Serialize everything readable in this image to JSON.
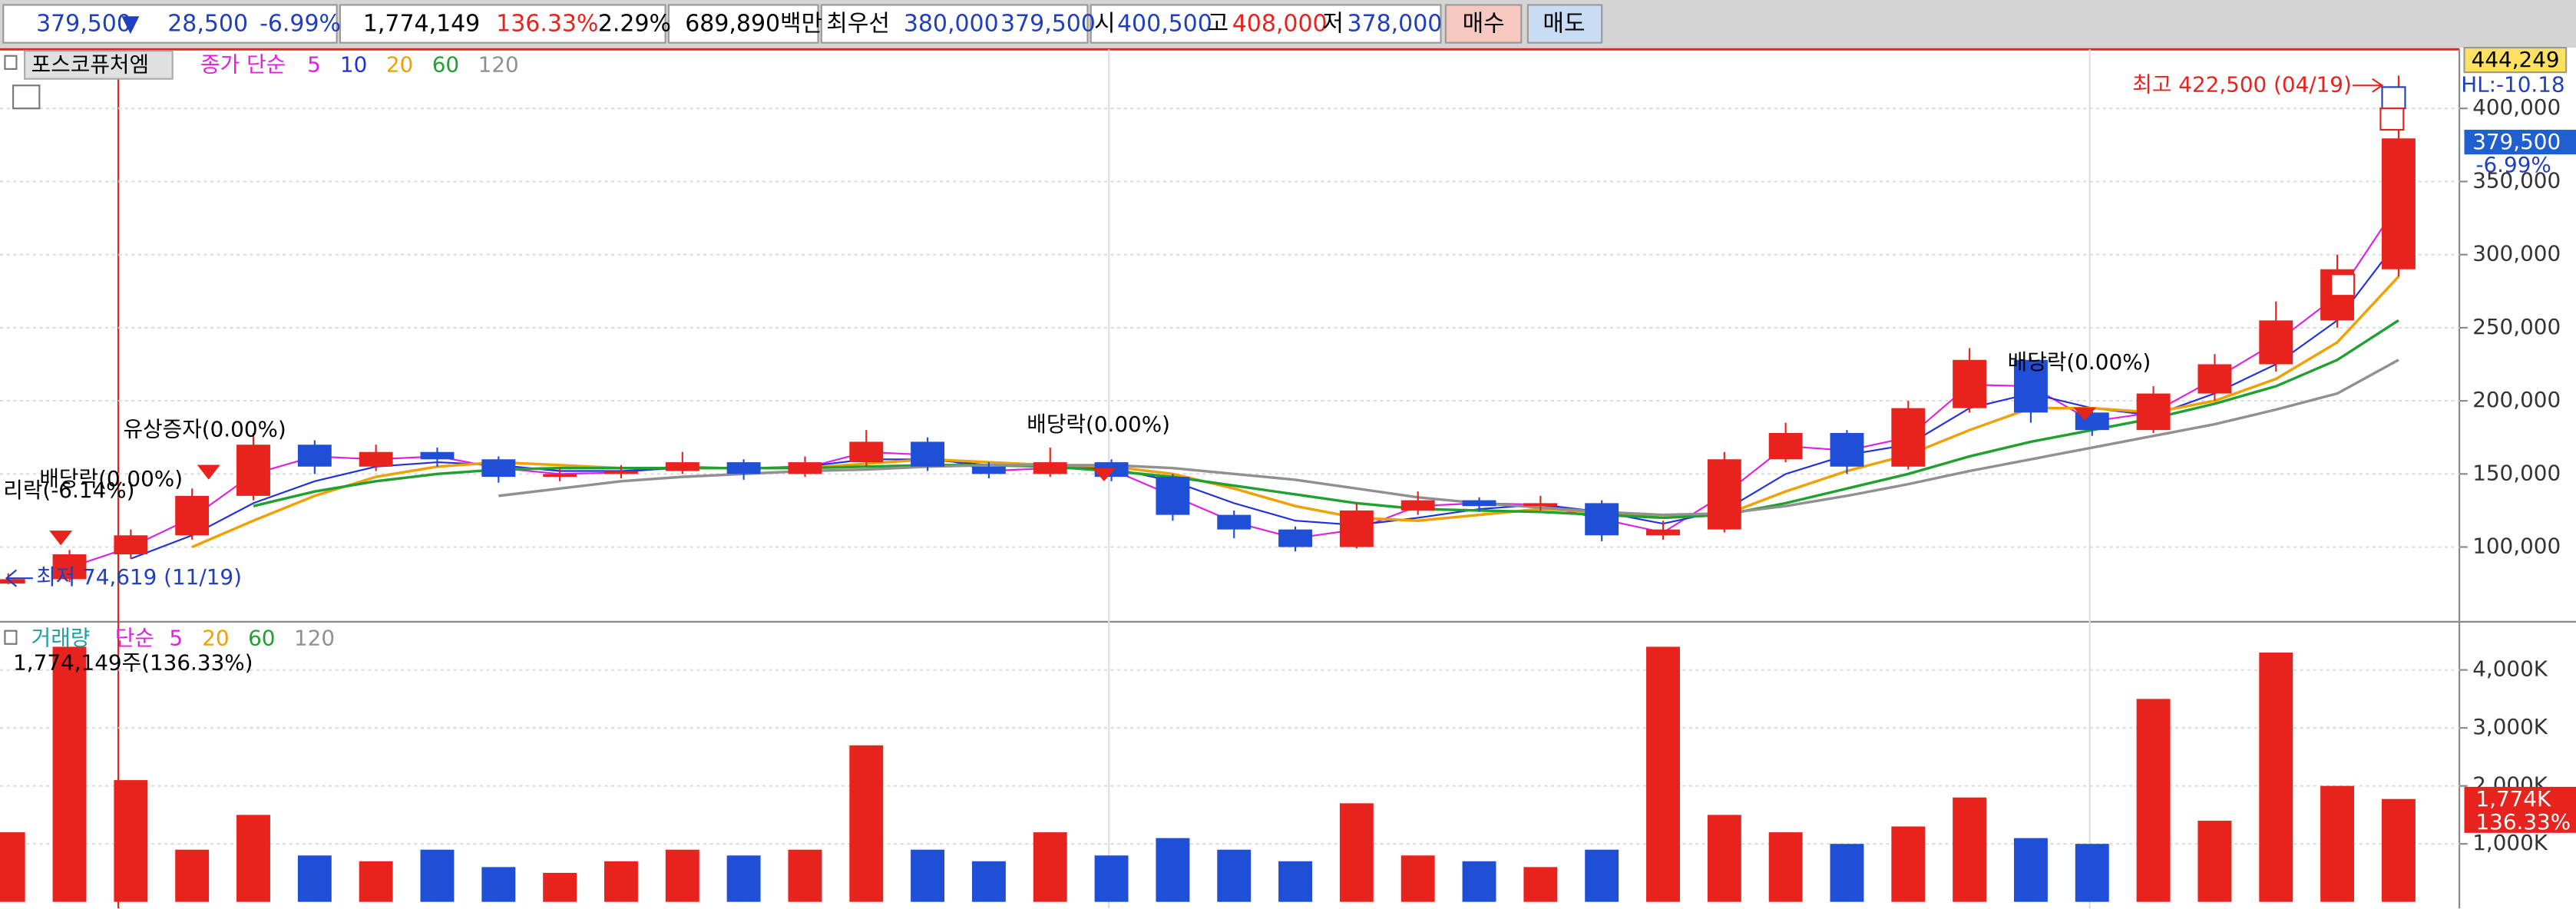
{
  "toolbar": {
    "price": "379,500",
    "direction": "▼",
    "change": "28,500",
    "change_rate": "-6.99%",
    "volume": "1,774,149",
    "volume_rate": "136.33%",
    "turnover_rate": "2.29%",
    "trade_amount": "689,890백만",
    "best_quote_label": "최우선",
    "best_ask": "380,000",
    "best_bid": "379,500",
    "open_label": "시",
    "open": "400,500",
    "high_label": "고",
    "high": "408,000",
    "low_label": "저",
    "low": "378,000",
    "buy_button": "매수",
    "sell_button": "매도"
  },
  "chart_data": [
    {
      "type": "candlestick",
      "title": "포스코퓨처엠",
      "legend_title": "종가 단순",
      "open": [
        75000,
        78000,
        95000,
        108000,
        135000,
        170000,
        155000,
        165000,
        160000,
        148000,
        150000,
        152000,
        158000,
        150000,
        158000,
        172000,
        155000,
        150000,
        158000,
        148000,
        122000,
        112000,
        100000,
        125000,
        132000,
        128000,
        130000,
        108000,
        112000,
        160000,
        178000,
        155000,
        195000,
        228000,
        192000,
        180000,
        205000,
        225000,
        255000,
        290000
      ],
      "high": [
        82000,
        98000,
        112000,
        140000,
        178000,
        173000,
        170000,
        168000,
        162000,
        154000,
        156000,
        165000,
        160000,
        162000,
        180000,
        175000,
        158000,
        168000,
        160000,
        150000,
        125000,
        114000,
        130000,
        138000,
        134000,
        135000,
        132000,
        118000,
        165000,
        185000,
        180000,
        200000,
        236000,
        230000,
        195000,
        210000,
        232000,
        268000,
        300000,
        422500
      ],
      "low": [
        74619,
        76000,
        92000,
        105000,
        132000,
        150000,
        152000,
        155000,
        144000,
        145000,
        147000,
        150000,
        146000,
        148000,
        155000,
        152000,
        147000,
        148000,
        145000,
        118000,
        106000,
        97000,
        99000,
        122000,
        124000,
        125000,
        104000,
        105000,
        110000,
        158000,
        150000,
        153000,
        192000,
        185000,
        176000,
        178000,
        200000,
        220000,
        250000,
        285000
      ],
      "close": [
        78000,
        95000,
        108000,
        135000,
        170000,
        155000,
        165000,
        160000,
        148000,
        150000,
        152000,
        158000,
        150000,
        158000,
        172000,
        155000,
        150000,
        158000,
        148000,
        122000,
        112000,
        100000,
        125000,
        132000,
        128000,
        130000,
        108000,
        112000,
        160000,
        178000,
        155000,
        195000,
        228000,
        192000,
        180000,
        205000,
        225000,
        255000,
        290000,
        379500
      ],
      "up_color": "#e8231d",
      "down_color": "#1f4fd6",
      "series": [
        {
          "name": "5",
          "color": "#e020e0",
          "values": [
            null,
            86000,
            100000,
            120000,
            150000,
            162000,
            160000,
            162000,
            154000,
            150000,
            151000,
            155000,
            154000,
            154000,
            165000,
            163000,
            152000,
            154000,
            153000,
            135000,
            117000,
            106000,
            112000,
            128000,
            130000,
            129000,
            119000,
            110000,
            136000,
            169000,
            166000,
            175000,
            211000,
            210000,
            186000,
            192000,
            215000,
            240000,
            272000,
            335000
          ]
        },
        {
          "name": "10",
          "color": "#2030e0",
          "values": [
            null,
            null,
            92000,
            108000,
            130000,
            145000,
            155000,
            158000,
            156000,
            152000,
            152000,
            154000,
            154000,
            155000,
            160000,
            160000,
            156000,
            155000,
            154000,
            145000,
            130000,
            118000,
            115000,
            120000,
            126000,
            129000,
            124000,
            116000,
            125000,
            150000,
            163000,
            170000,
            195000,
            205000,
            195000,
            190000,
            205000,
            225000,
            255000,
            310000
          ]
        },
        {
          "name": "20",
          "color": "#f0a000",
          "values": [
            null,
            null,
            null,
            100000,
            118000,
            135000,
            148000,
            155000,
            158000,
            156000,
            154000,
            154000,
            154000,
            154000,
            157000,
            160000,
            158000,
            156000,
            155000,
            150000,
            140000,
            128000,
            120000,
            118000,
            122000,
            126000,
            124000,
            120000,
            122000,
            138000,
            152000,
            163000,
            180000,
            195000,
            195000,
            192000,
            200000,
            215000,
            240000,
            285000
          ]
        },
        {
          "name": "60",
          "color": "#20a030",
          "values": [
            null,
            null,
            null,
            null,
            128000,
            138000,
            145000,
            150000,
            153000,
            154000,
            154000,
            154000,
            154000,
            154000,
            155000,
            156000,
            156000,
            155000,
            152000,
            148000,
            142000,
            136000,
            130000,
            126000,
            125000,
            124000,
            122000,
            120000,
            122000,
            130000,
            140000,
            150000,
            162000,
            172000,
            180000,
            188000,
            198000,
            210000,
            228000,
            255000
          ]
        },
        {
          "name": "120",
          "color": "#909090",
          "values": [
            null,
            null,
            null,
            null,
            null,
            null,
            null,
            null,
            135000,
            140000,
            145000,
            148000,
            150000,
            152000,
            153000,
            155000,
            156000,
            156000,
            156000,
            154000,
            150000,
            146000,
            140000,
            134000,
            130000,
            127000,
            124000,
            122000,
            123000,
            128000,
            135000,
            143000,
            152000,
            160000,
            168000,
            176000,
            184000,
            194000,
            205000,
            228000
          ]
        }
      ],
      "ylim": [
        50000,
        440000
      ],
      "yticks": [
        {
          "value": 100000,
          "label": "100,000"
        },
        {
          "value": 150000,
          "label": "150,000"
        },
        {
          "value": 200000,
          "label": "200,000"
        },
        {
          "value": 250000,
          "label": "250,000"
        },
        {
          "value": 300000,
          "label": "300,000"
        },
        {
          "value": 350000,
          "label": "350,000"
        },
        {
          "value": 400000,
          "label": "400,000"
        }
      ],
      "grid": true,
      "annotations": [
        "최고 422,500 (04/19)",
        "최저 74,619 (11/19)",
        "유상증자(0.00%)",
        "배당락(0.00%)",
        "배당락(0.00%)",
        "배당락(0.00%)",
        "리락(-6.14%)"
      ],
      "axis_tags": [
        "444,249",
        "HL:-10.18",
        "379,500",
        "-6.99%"
      ]
    },
    {
      "type": "bar",
      "title": "거래량",
      "legend_title": "단순",
      "series_labels": [
        {
          "name": "5",
          "color": "#e020e0"
        },
        {
          "name": "20",
          "color": "#f0a000"
        },
        {
          "name": "60",
          "color": "#20a030"
        },
        {
          "name": "120",
          "color": "#909090"
        }
      ],
      "info": "1,774,149주(136.33%)",
      "values": [
        1200,
        4400,
        2100,
        900,
        1500,
        800,
        700,
        900,
        600,
        500,
        700,
        900,
        800,
        900,
        2700,
        900,
        700,
        1200,
        800,
        1100,
        900,
        700,
        1700,
        800,
        700,
        600,
        900,
        4400,
        1500,
        1200,
        1000,
        1300,
        1800,
        1100,
        1000,
        3500,
        1400,
        4300,
        2000,
        1774
      ],
      "ylim": [
        0,
        4800
      ],
      "yticks": [
        {
          "value": 1000,
          "label": "1,000K"
        },
        {
          "value": 2000,
          "label": "2,000K"
        },
        {
          "value": 3000,
          "label": "3,000K"
        },
        {
          "value": 4000,
          "label": "4,000K"
        }
      ],
      "grid": true,
      "axis_tags": [
        "1,774K",
        "136.33%"
      ]
    }
  ]
}
